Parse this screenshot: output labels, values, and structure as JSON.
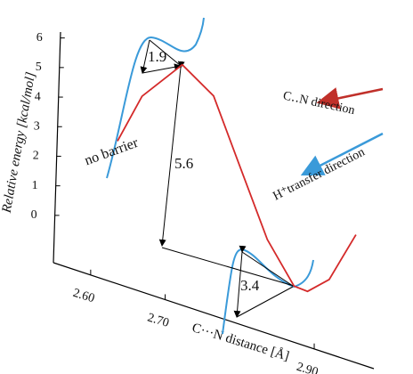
{
  "chart_data": {
    "type": "line",
    "y_label": "Relative energy [kcal/mol]",
    "x_label": "C···N distance [Å]",
    "xlim": [
      2.55,
      2.98
    ],
    "ylim": [
      -1.6,
      6.2
    ],
    "xticks": [
      {
        "value": 2.6,
        "label": "2.60"
      },
      {
        "value": 2.7,
        "label": "2.70"
      },
      {
        "value": 2.9,
        "label": "2.90"
      }
    ],
    "yticks": [
      0,
      1,
      2,
      3,
      4,
      5,
      6
    ],
    "series": [
      {
        "color": "#d42a2a",
        "x": [
          2.636,
          2.669,
          2.723,
          2.765,
          2.801,
          2.837,
          2.873,
          2.891,
          2.92,
          2.956
        ],
        "values": [
          2.84,
          4.48,
          5.75,
          4.85,
          2.56,
          0.27,
          -1.17,
          -1.28,
          -0.77,
          0.88
        ]
      }
    ],
    "annotations": [
      "1.9",
      "5.6",
      "3.4",
      "no barrier"
    ],
    "directions": [
      {
        "label": "C‥N direction",
        "color": "#c0302a"
      },
      {
        "label": "H⁺transfer direction",
        "color": "#3a9ad9"
      }
    ]
  }
}
